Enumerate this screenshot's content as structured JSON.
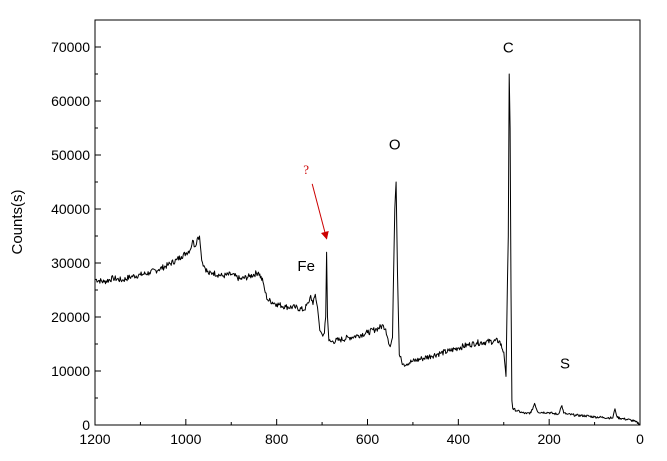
{
  "chart_data": {
    "type": "line",
    "title": "",
    "xlabel": "",
    "ylabel": "Counts(s)",
    "xlim": [
      1200,
      0
    ],
    "ylim": [
      0,
      75000
    ],
    "x_reversed": true,
    "grid": false,
    "legend": "none",
    "x_ticks": [
      1200,
      1000,
      800,
      600,
      400,
      200,
      0
    ],
    "y_ticks": [
      0,
      10000,
      20000,
      30000,
      40000,
      50000,
      60000,
      70000
    ],
    "colors": {
      "line": "#000000",
      "arrow": "#cc0000",
      "question": "#cc0000",
      "axis": "#000000"
    },
    "series": [
      {
        "points": [
          [
            1200,
            27000
          ],
          [
            1180,
            26500
          ],
          [
            1160,
            27200
          ],
          [
            1140,
            26800
          ],
          [
            1120,
            27500
          ],
          [
            1100,
            27800
          ],
          [
            1080,
            28200
          ],
          [
            1060,
            28800
          ],
          [
            1040,
            29600
          ],
          [
            1020,
            30600
          ],
          [
            1010,
            31200
          ],
          [
            1000,
            31800
          ],
          [
            990,
            32500
          ],
          [
            985,
            34200
          ],
          [
            980,
            33000
          ],
          [
            975,
            34500
          ],
          [
            970,
            35000
          ],
          [
            965,
            30500
          ],
          [
            960,
            29500
          ],
          [
            950,
            28000
          ],
          [
            940,
            28200
          ],
          [
            920,
            27600
          ],
          [
            900,
            27900
          ],
          [
            880,
            27000
          ],
          [
            860,
            27500
          ],
          [
            840,
            28300
          ],
          [
            830,
            26500
          ],
          [
            825,
            24500
          ],
          [
            820,
            23200
          ],
          [
            800,
            22400
          ],
          [
            780,
            21900
          ],
          [
            760,
            21800
          ],
          [
            740,
            21300
          ],
          [
            730,
            22600
          ],
          [
            725,
            24000
          ],
          [
            720,
            22300
          ],
          [
            715,
            24200
          ],
          [
            710,
            21800
          ],
          [
            705,
            17500
          ],
          [
            700,
            16800
          ],
          [
            695,
            17000
          ],
          [
            692,
            20000
          ],
          [
            690,
            32000
          ],
          [
            688,
            20000
          ],
          [
            685,
            15600
          ],
          [
            680,
            15400
          ],
          [
            660,
            15800
          ],
          [
            640,
            16200
          ],
          [
            620,
            16600
          ],
          [
            600,
            17100
          ],
          [
            580,
            17800
          ],
          [
            565,
            18400
          ],
          [
            560,
            17800
          ],
          [
            555,
            16000
          ],
          [
            550,
            14500
          ],
          [
            545,
            16200
          ],
          [
            540,
            40000
          ],
          [
            537,
            45000
          ],
          [
            534,
            28000
          ],
          [
            530,
            13000
          ],
          [
            525,
            11800
          ],
          [
            520,
            11300
          ],
          [
            500,
            11800
          ],
          [
            480,
            12300
          ],
          [
            460,
            12800
          ],
          [
            440,
            13300
          ],
          [
            420,
            13700
          ],
          [
            400,
            14300
          ],
          [
            380,
            14800
          ],
          [
            360,
            15200
          ],
          [
            310,
            15600
          ],
          [
            300,
            13500
          ],
          [
            295,
            9000
          ],
          [
            292,
            26000
          ],
          [
            290,
            35000
          ],
          [
            288,
            65000
          ],
          [
            286,
            55000
          ],
          [
            284,
            25000
          ],
          [
            282,
            4500
          ],
          [
            280,
            3000
          ],
          [
            270,
            2600
          ],
          [
            260,
            2300
          ],
          [
            250,
            2100
          ],
          [
            240,
            2300
          ],
          [
            232,
            4000
          ],
          [
            225,
            2400
          ],
          [
            200,
            2300
          ],
          [
            190,
            2100
          ],
          [
            180,
            2000
          ],
          [
            172,
            3600
          ],
          [
            168,
            2200
          ],
          [
            160,
            2000
          ],
          [
            140,
            1800
          ],
          [
            120,
            1700
          ],
          [
            100,
            1500
          ],
          [
            80,
            1400
          ],
          [
            60,
            1300
          ],
          [
            55,
            3000
          ],
          [
            50,
            1400
          ],
          [
            40,
            1200
          ],
          [
            20,
            900
          ],
          [
            10,
            600
          ],
          [
            0,
            200
          ]
        ]
      }
    ],
    "annotations": [
      {
        "text": "C",
        "x": 290,
        "y": 69000
      },
      {
        "text": "O",
        "x": 540,
        "y": 51000
      },
      {
        "text": "Fe",
        "x": 735,
        "y": 28500
      },
      {
        "text": "S",
        "x": 165,
        "y": 10500
      },
      {
        "text": "?",
        "x": 735,
        "y": 46500
      }
    ]
  }
}
